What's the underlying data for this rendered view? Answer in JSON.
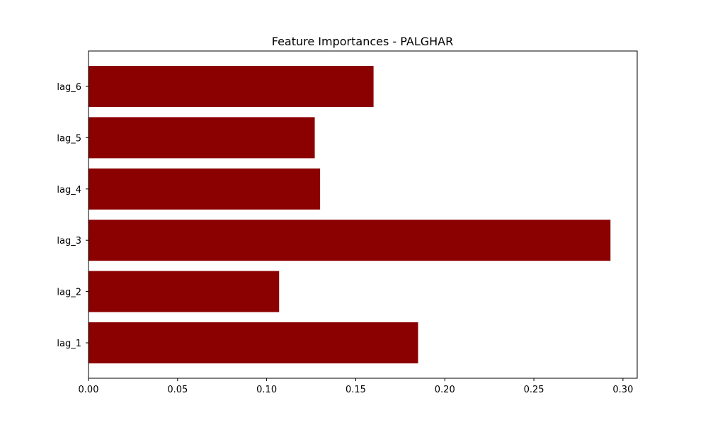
{
  "chart_data": {
    "type": "bar",
    "orientation": "horizontal",
    "title": "Feature Importances - PALGHAR",
    "xlabel": "",
    "ylabel": "",
    "categories": [
      "lag_1",
      "lag_2",
      "lag_3",
      "lag_4",
      "lag_5",
      "lag_6"
    ],
    "values": [
      0.185,
      0.107,
      0.293,
      0.13,
      0.127,
      0.16
    ],
    "xlim": [
      0.0,
      0.308
    ],
    "xticks": [
      "0.00",
      "0.05",
      "0.10",
      "0.15",
      "0.20",
      "0.25",
      "0.30"
    ],
    "grid": false,
    "legend": "none",
    "bar_color": "#8b0000"
  }
}
